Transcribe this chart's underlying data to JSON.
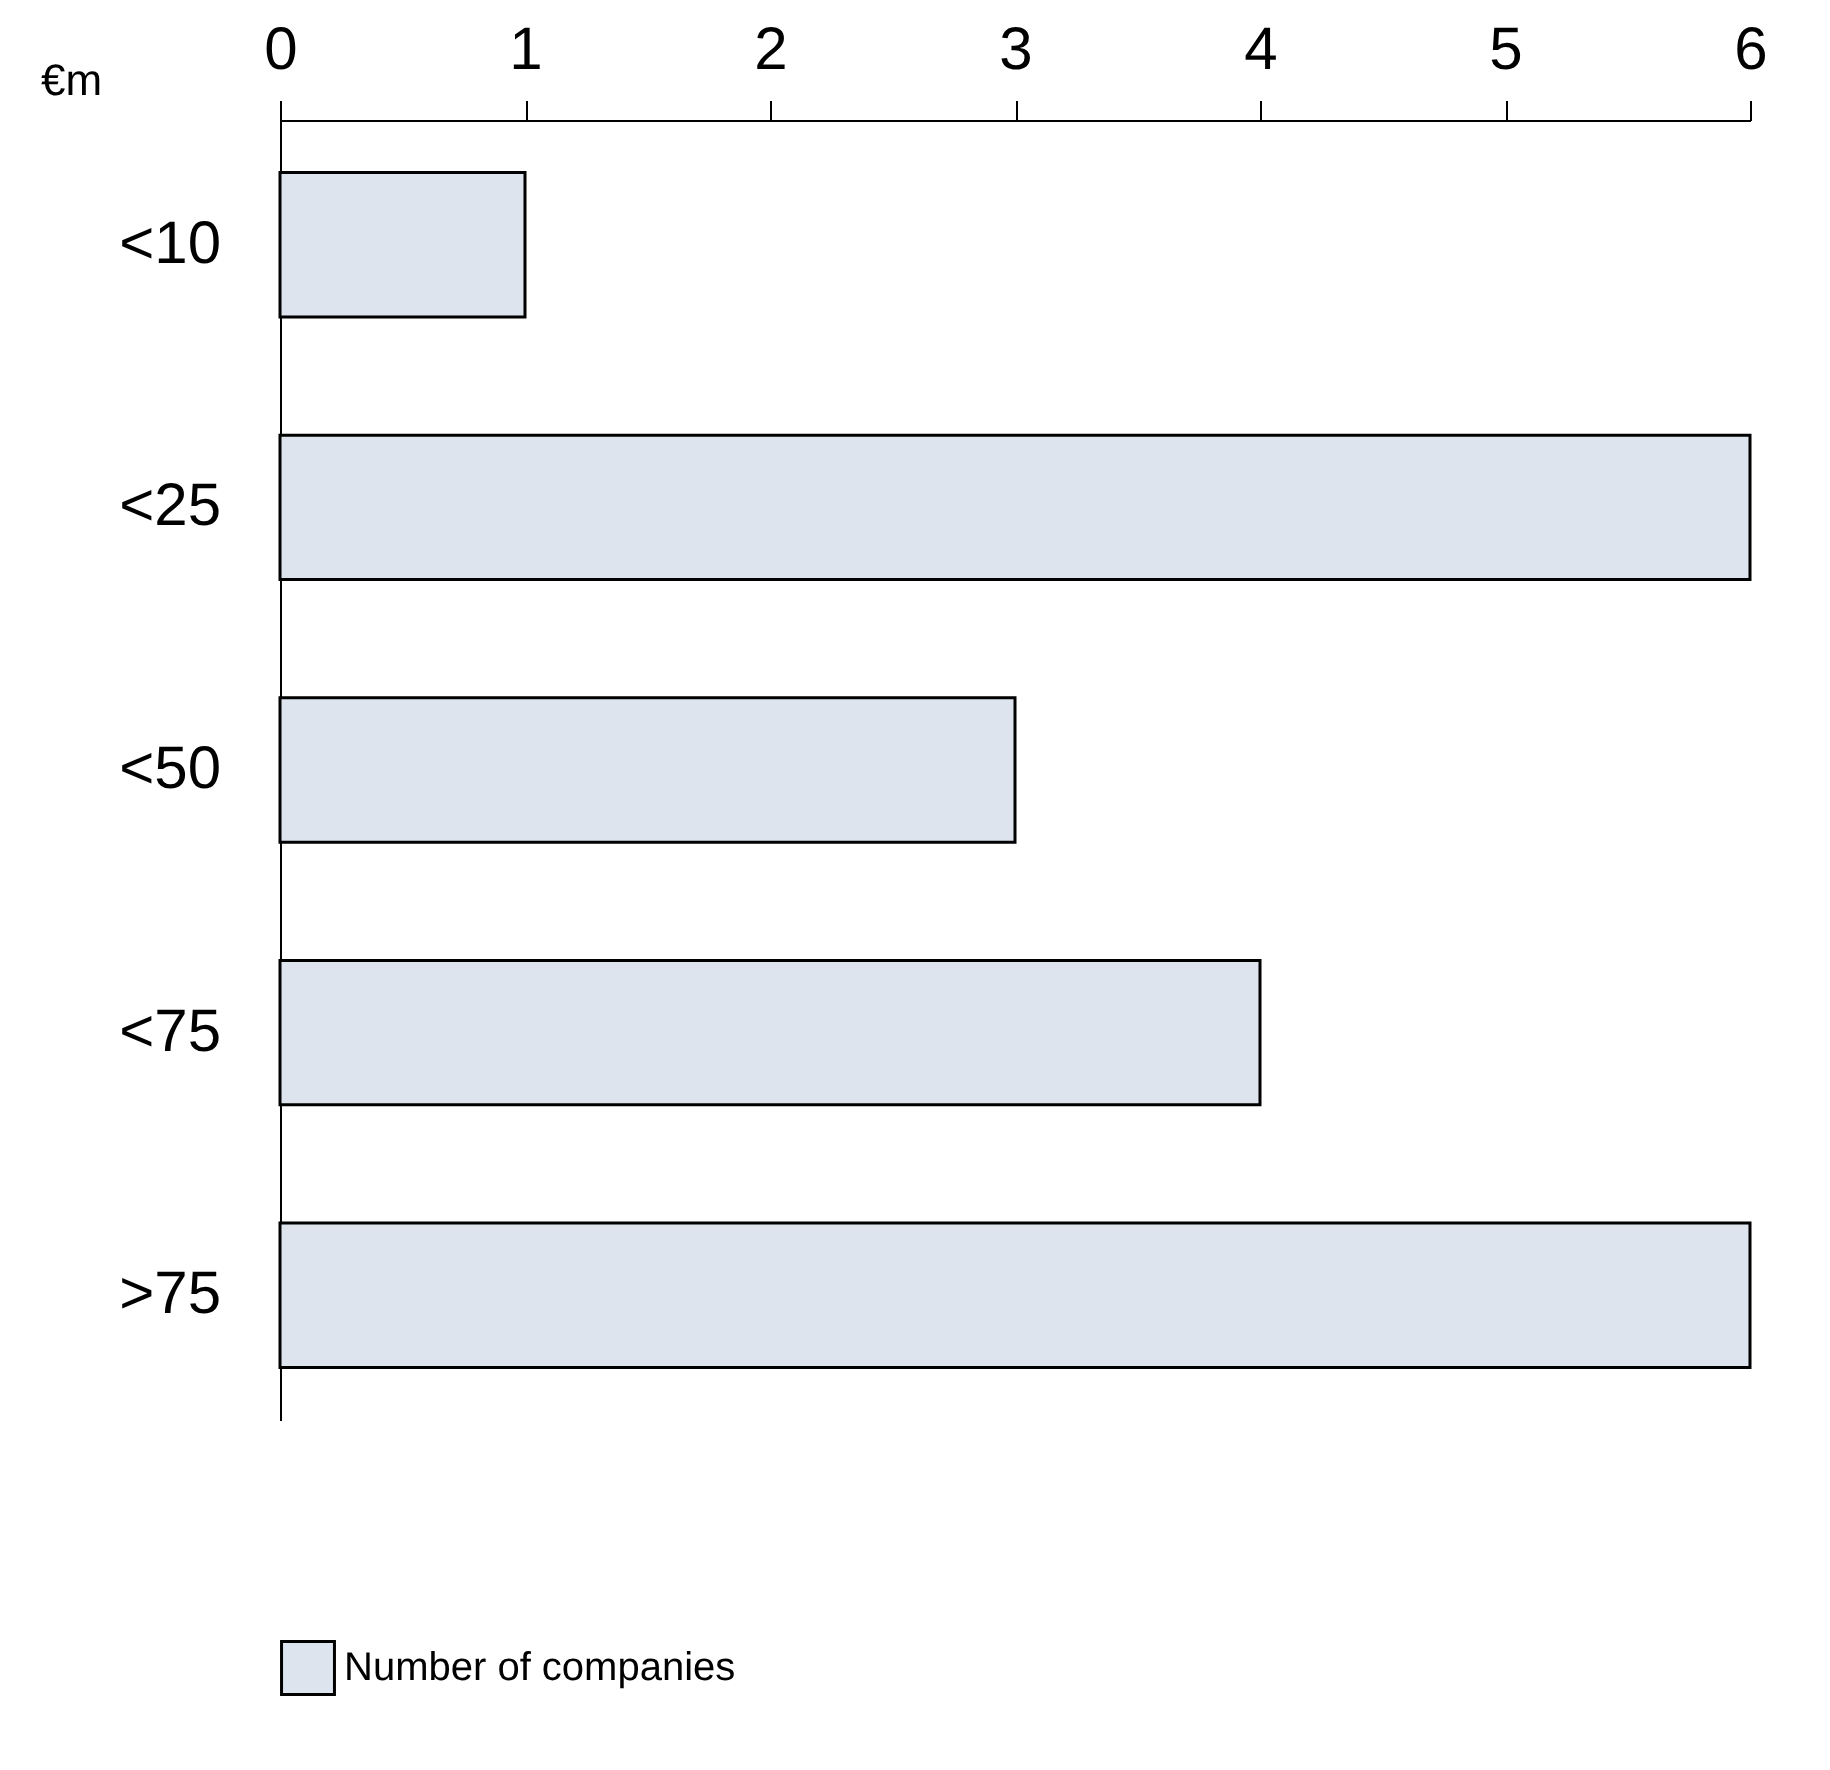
{
  "chart_data": {
    "type": "bar",
    "orientation": "horizontal",
    "ylabel": "€m",
    "categories": [
      "<10",
      "<25",
      "<50",
      "<75",
      ">75"
    ],
    "series": [
      {
        "name": "Number of companies",
        "color": "#dde4ee",
        "values": [
          1,
          6,
          3,
          4,
          6
        ]
      }
    ],
    "xlim": [
      0,
      6
    ],
    "xticks": [
      0,
      1,
      2,
      3,
      4,
      5,
      6
    ],
    "grid": false,
    "legend": "bottom"
  }
}
